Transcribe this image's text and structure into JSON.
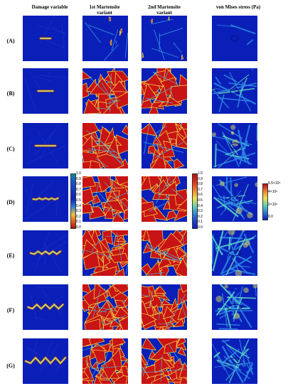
{
  "headers": {
    "damage": "Damage variable",
    "mart1_line1": "1st Martensite",
    "mart1_line2": "variant",
    "mart2_line1": "2nd Martensite",
    "mart2_line2": "variant",
    "stress": "von Mises stress (Pa)"
  },
  "rows": [
    "(A)",
    "(B)",
    "(C)",
    "(D)",
    "(E)",
    "(F)",
    "(G)"
  ],
  "colorbar_damage": {
    "ticks": [
      "1.0",
      "0.9",
      "0.8",
      "0.7",
      "0.6",
      "0.5",
      "0.4",
      "0.3",
      "0.2",
      "0.1",
      "0.0"
    ]
  },
  "colorbar_martensite": {
    "ticks": [
      "1.0",
      "0.9",
      "0.8",
      "0.7",
      "0.6",
      "0.5",
      "0.4",
      "0.3",
      "0.2",
      "0.1",
      "0.0"
    ]
  },
  "colorbar_stress": {
    "ticks": [
      "6.5×10⁹",
      "4×10⁹",
      "2×10⁹",
      "0.0"
    ]
  },
  "colors": {
    "background_blue": "#0a1fb8",
    "martensite_red": "#c81414",
    "crack_yellow": "#f4e04a"
  }
}
